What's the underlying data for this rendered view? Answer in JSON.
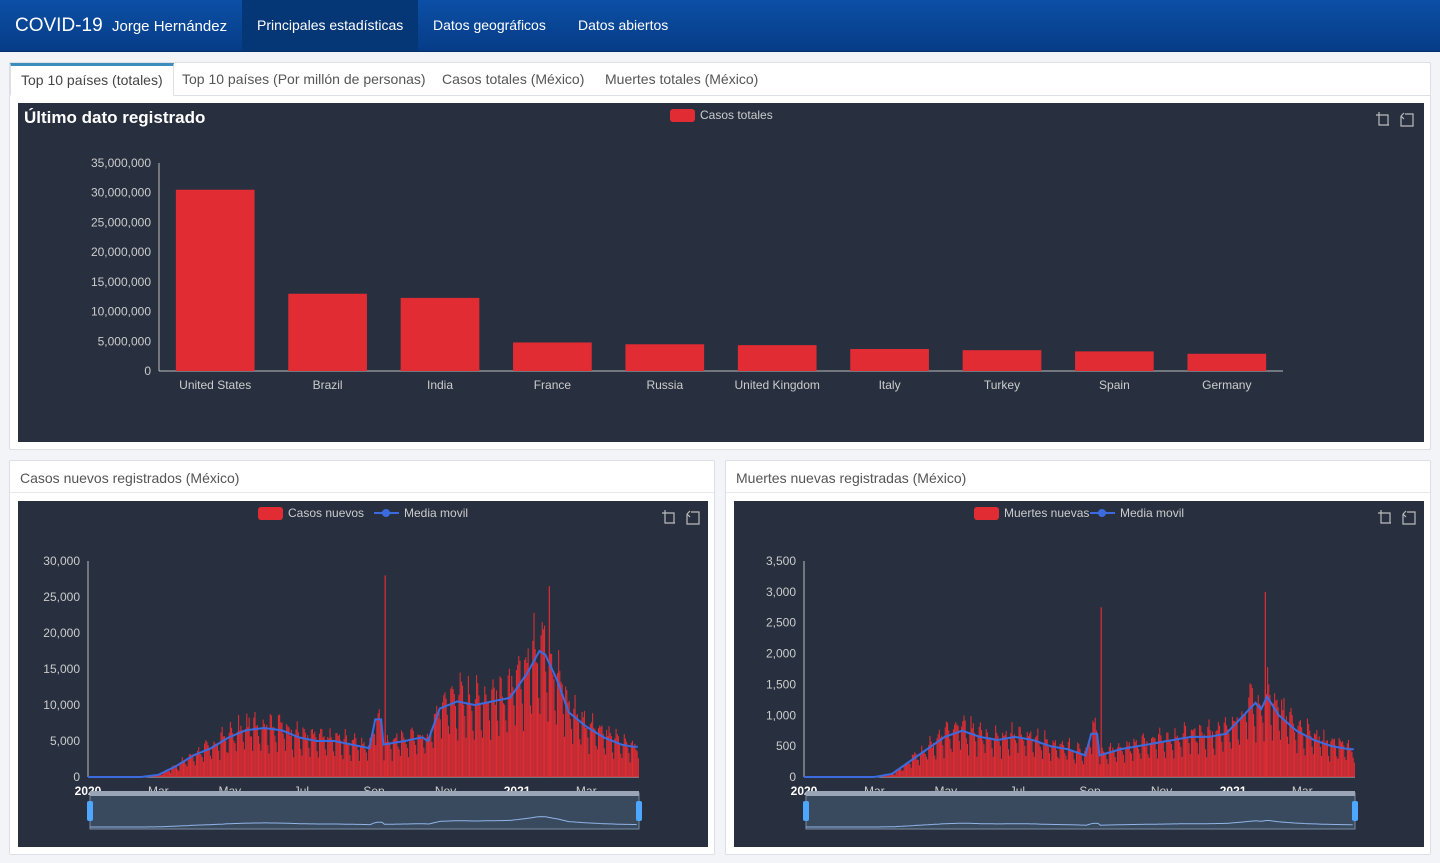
{
  "navbar": {
    "brand": "COVID-19",
    "user": "Jorge Hernández",
    "items": [
      "Principales estadísticas",
      "Datos geográficos",
      "Datos abiertos"
    ]
  },
  "tabs": [
    "Top 10 países (totales)",
    "Top 10 países (Por millón de personas)",
    "Casos totales (México)",
    "Muertes totales (México)"
  ],
  "colors": {
    "bar": "#e22c33",
    "line": "#3c6be0",
    "chart_bg": "#28303f",
    "nav": "#0a4a9e"
  },
  "panels": {
    "cases_title": "Casos nuevos registrados (México)",
    "deaths_title": "Muertes nuevas registradas (México)"
  },
  "chart_data": [
    {
      "type": "bar",
      "title": "Último dato registrado",
      "legend": [
        "Casos totales"
      ],
      "categories": [
        "United States",
        "Brazil",
        "India",
        "France",
        "Russia",
        "United Kingdom",
        "Italy",
        "Turkey",
        "Spain",
        "Germany"
      ],
      "values": [
        30500000,
        13000000,
        12300000,
        4800000,
        4500000,
        4350000,
        3700000,
        3500000,
        3300000,
        2900000
      ],
      "ylim": [
        0,
        35000000
      ],
      "yticks": [
        "35,000,000",
        "30,000,000",
        "25,000,000",
        "20,000,000",
        "15,000,000",
        "10,000,000",
        "5,000,000",
        "0"
      ]
    },
    {
      "type": "bar+line",
      "legend": [
        "Casos nuevos",
        "Media movil"
      ],
      "ylim": [
        0,
        30000
      ],
      "yticks": [
        "30,000",
        "25,000",
        "20,000",
        "15,000",
        "10,000",
        "5,000",
        "0"
      ],
      "xticks": [
        "2020",
        "Mar",
        "May",
        "Jul",
        "Sep",
        "Nov",
        "2021",
        "Mar"
      ],
      "moving_average_points": [
        [
          0,
          0
        ],
        [
          45,
          0
        ],
        [
          60,
          300
        ],
        [
          75,
          1500
        ],
        [
          90,
          3000
        ],
        [
          105,
          4000
        ],
        [
          120,
          5500
        ],
        [
          135,
          6500
        ],
        [
          150,
          6800
        ],
        [
          165,
          6500
        ],
        [
          180,
          5500
        ],
        [
          195,
          5000
        ],
        [
          210,
          5000
        ],
        [
          225,
          4500
        ],
        [
          240,
          4000
        ],
        [
          245,
          8000
        ],
        [
          250,
          8000
        ],
        [
          252,
          4500
        ],
        [
          270,
          5000
        ],
        [
          285,
          5500
        ],
        [
          290,
          5000
        ],
        [
          300,
          9500
        ],
        [
          315,
          10500
        ],
        [
          330,
          10000
        ],
        [
          345,
          10500
        ],
        [
          360,
          11000
        ],
        [
          375,
          14500
        ],
        [
          385,
          17500
        ],
        [
          390,
          17000
        ],
        [
          400,
          13500
        ],
        [
          410,
          9000
        ],
        [
          425,
          7000
        ],
        [
          440,
          5500
        ],
        [
          455,
          4500
        ],
        [
          465,
          4200
        ]
      ],
      "spikes": [
        [
          253,
          28000
        ],
        [
          393,
          26500
        ]
      ]
    },
    {
      "type": "bar+line",
      "legend": [
        "Muertes nuevas",
        "Media movil"
      ],
      "ylim": [
        0,
        3500
      ],
      "yticks": [
        "3,500",
        "3,000",
        "2,500",
        "2,000",
        "1,500",
        "1,000",
        "500",
        "0"
      ],
      "xticks": [
        "2020",
        "Mar",
        "May",
        "Jul",
        "Sep",
        "Nov",
        "2021",
        "Mar"
      ],
      "moving_average_points": [
        [
          0,
          0
        ],
        [
          60,
          0
        ],
        [
          75,
          50
        ],
        [
          90,
          250
        ],
        [
          105,
          450
        ],
        [
          120,
          650
        ],
        [
          135,
          750
        ],
        [
          150,
          650
        ],
        [
          165,
          600
        ],
        [
          180,
          650
        ],
        [
          195,
          600
        ],
        [
          210,
          500
        ],
        [
          225,
          450
        ],
        [
          240,
          350
        ],
        [
          245,
          700
        ],
        [
          250,
          700
        ],
        [
          252,
          350
        ],
        [
          270,
          450
        ],
        [
          285,
          500
        ],
        [
          300,
          550
        ],
        [
          315,
          600
        ],
        [
          330,
          650
        ],
        [
          345,
          650
        ],
        [
          360,
          700
        ],
        [
          375,
          1000
        ],
        [
          385,
          1200
        ],
        [
          390,
          1100
        ],
        [
          395,
          1300
        ],
        [
          405,
          1000
        ],
        [
          420,
          750
        ],
        [
          435,
          600
        ],
        [
          450,
          500
        ],
        [
          465,
          450
        ]
      ],
      "spikes": [
        [
          253,
          2750
        ],
        [
          393,
          3000
        ]
      ]
    }
  ]
}
